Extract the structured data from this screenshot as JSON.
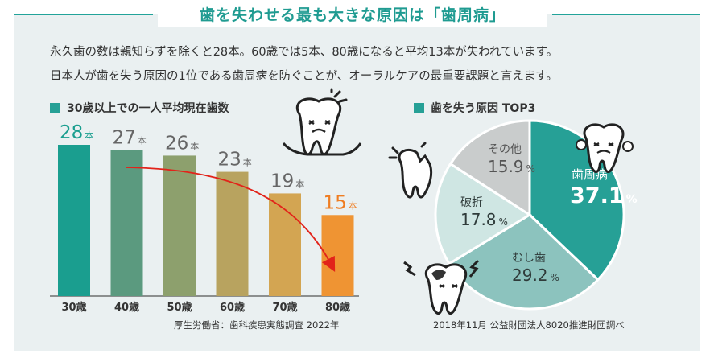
{
  "header": {
    "title": "歯を失わせる最も大きな原因は「歯周病」"
  },
  "intro": {
    "line1": "永久歯の数は親知らずを除くと28本。60歳では5本、80歳になると平均13本が失われています。",
    "line2": "日本人が歯を失う原因の1位である歯周病を防ぐことが、オーラルケアの最重要課題と言えます。"
  },
  "colors": {
    "accent": "#26a096",
    "highlight": "#ef8c22",
    "arrow": "#e2231a",
    "panel": "#eaf0f1"
  },
  "chart_data": [
    {
      "type": "bar",
      "title": "30歳以上での一人平均現在歯数",
      "categories": [
        "30歳",
        "40歳",
        "50歳",
        "60歳",
        "70歳",
        "80歳"
      ],
      "values": [
        28,
        27,
        26,
        23,
        19,
        15
      ],
      "unit": "本",
      "value_labels": [
        "28",
        "27",
        "26",
        "23",
        "19",
        "15"
      ],
      "bar_colors": [
        "#1a9e8f",
        "#5b9a7f",
        "#8da06d",
        "#b8a35f",
        "#d3a552",
        "#ef9433"
      ],
      "label_colors": [
        "#1a9e8f",
        "#666666",
        "#666666",
        "#666666",
        "#666666",
        "#ef7d22"
      ],
      "ylim": [
        0,
        28
      ],
      "annotation": "decreasing-trend-arrow",
      "icon": "damaged-tooth-icon",
      "source": "厚生労働省：歯科疾患実態調査 2022年"
    },
    {
      "type": "pie",
      "title": "歯を失う原因 TOP3",
      "slices": [
        {
          "label": "歯周病",
          "value": 37.1,
          "value_label": "37.1",
          "color": "#26a096",
          "text_color": "#ffffff"
        },
        {
          "label": "むし歯",
          "value": 29.2,
          "value_label": "29.2",
          "color": "#8cc3be",
          "text_color": "#2f3b3a"
        },
        {
          "label": "破折",
          "value": 17.8,
          "value_label": "17.8",
          "color": "#cfe6e3",
          "text_color": "#2f3b3a"
        },
        {
          "label": "その他",
          "value": 15.9,
          "value_label": "15.9",
          "color": "#c9cccc",
          "text_color": "#555555"
        }
      ],
      "unit": "%",
      "source": "2018年11月 公益財団法人8020推進財団調べ"
    }
  ]
}
